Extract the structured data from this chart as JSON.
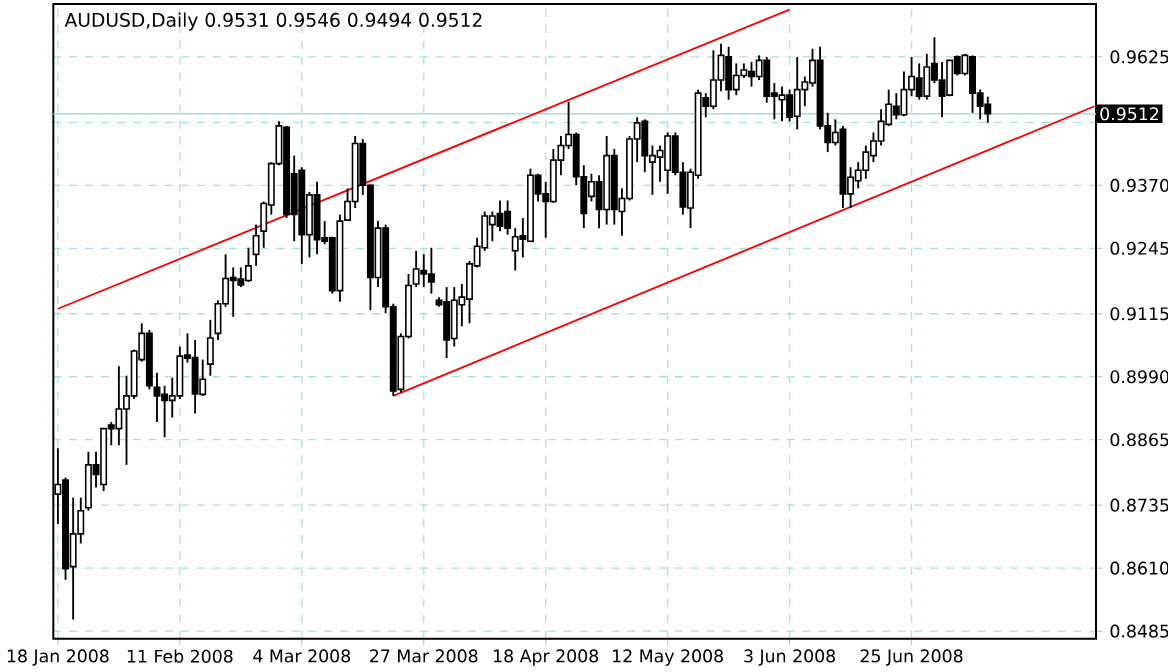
{
  "chart_data": {
    "type": "candlestick",
    "title": "AUDUSD,Daily 0.9531 0.9546 0.9494 0.9512",
    "categories": [
      "18 Jan 2008",
      null,
      null,
      null,
      null,
      null,
      null,
      null,
      null,
      null,
      null,
      null,
      null,
      null,
      null,
      null,
      "11 Feb 2008",
      null,
      null,
      null,
      null,
      null,
      null,
      null,
      null,
      null,
      null,
      null,
      null,
      null,
      null,
      null,
      "4 Mar 2008",
      null,
      null,
      null,
      null,
      null,
      null,
      null,
      null,
      null,
      null,
      null,
      null,
      null,
      null,
      null,
      "27 Mar 2008",
      null,
      null,
      null,
      null,
      null,
      null,
      null,
      null,
      null,
      null,
      null,
      null,
      null,
      null,
      null,
      "18 Apr 2008",
      null,
      null,
      null,
      null,
      null,
      null,
      null,
      null,
      null,
      null,
      null,
      null,
      null,
      null,
      null,
      "12 May 2008",
      null,
      null,
      null,
      null,
      null,
      null,
      null,
      null,
      null,
      null,
      null,
      null,
      null,
      null,
      null,
      "3 Jun 2008",
      null,
      null,
      null,
      null,
      null,
      null,
      null,
      null,
      null,
      null,
      null,
      null,
      null,
      null,
      null,
      "25 Jun 2008",
      null,
      null,
      null,
      null,
      null,
      null,
      null,
      null,
      null,
      null,
      null,
      null,
      null,
      null,
      null,
      null,
      null,
      null,
      null,
      null,
      null,
      null,
      null,
      null
    ],
    "ohlc": [
      [
        0.8757,
        0.8848,
        0.8698,
        0.8776
      ],
      [
        0.8785,
        0.879,
        0.8587,
        0.8609
      ],
      [
        0.8613,
        0.875,
        0.8508,
        0.8678
      ],
      [
        0.8678,
        0.875,
        0.8659,
        0.8724
      ],
      [
        0.873,
        0.8841,
        0.8724,
        0.8815
      ],
      [
        0.8815,
        0.8841,
        0.877,
        0.8796
      ],
      [
        0.8776,
        0.8887,
        0.8763,
        0.8887
      ],
      [
        0.8894,
        0.89,
        0.8854,
        0.8887
      ],
      [
        0.8887,
        0.9011,
        0.8854,
        0.8926
      ],
      [
        0.8926,
        0.8992,
        0.8815,
        0.8952
      ],
      [
        0.8952,
        0.9044,
        0.8946,
        0.9041
      ],
      [
        0.9024,
        0.9096,
        0.902,
        0.9076
      ],
      [
        0.9076,
        0.9083,
        0.8965,
        0.8972
      ],
      [
        0.8969,
        0.8998,
        0.89,
        0.8952
      ],
      [
        0.8955,
        0.8972,
        0.887,
        0.8943
      ],
      [
        0.8943,
        0.8988,
        0.8909,
        0.8952
      ],
      [
        0.8952,
        0.905,
        0.8946,
        0.9031
      ],
      [
        0.9033,
        0.9076,
        0.9018,
        0.9027
      ],
      [
        0.9028,
        0.9063,
        0.8917,
        0.8956
      ],
      [
        0.8955,
        0.9024,
        0.8952,
        0.8985
      ],
      [
        0.9015,
        0.9103,
        0.8992,
        0.9067
      ],
      [
        0.9076,
        0.9142,
        0.9063,
        0.9135
      ],
      [
        0.9135,
        0.9233,
        0.9129,
        0.9185
      ],
      [
        0.9187,
        0.9207,
        0.9109,
        0.9181
      ],
      [
        0.9184,
        0.9207,
        0.9168,
        0.9172
      ],
      [
        0.9181,
        0.9246,
        0.9178,
        0.921
      ],
      [
        0.9233,
        0.9292,
        0.921,
        0.927
      ],
      [
        0.9279,
        0.9338,
        0.9246,
        0.9334
      ],
      [
        0.9331,
        0.9416,
        0.9312,
        0.9413
      ],
      [
        0.9413,
        0.9497,
        0.941,
        0.9488
      ],
      [
        0.9485,
        0.9488,
        0.9305,
        0.9312
      ],
      [
        0.9393,
        0.9429,
        0.9259,
        0.9312
      ],
      [
        0.94,
        0.9406,
        0.9214,
        0.9272
      ],
      [
        0.9272,
        0.9357,
        0.9227,
        0.9351
      ],
      [
        0.9351,
        0.9377,
        0.9233,
        0.9262
      ],
      [
        0.9266,
        0.9299,
        0.9253,
        0.9259
      ],
      [
        0.9266,
        0.9268,
        0.9155,
        0.9161
      ],
      [
        0.9161,
        0.9312,
        0.9139,
        0.9299
      ],
      [
        0.9301,
        0.9364,
        0.9299,
        0.9338
      ],
      [
        0.9338,
        0.9468,
        0.9325,
        0.9453
      ],
      [
        0.9453,
        0.9462,
        0.9351,
        0.937
      ],
      [
        0.937,
        0.9372,
        0.9122,
        0.9187
      ],
      [
        0.9187,
        0.9299,
        0.9168,
        0.9285
      ],
      [
        0.9285,
        0.9292,
        0.9116,
        0.9129
      ],
      [
        0.9129,
        0.9135,
        0.8952,
        0.8962
      ],
      [
        0.8965,
        0.9076,
        0.8959,
        0.907
      ],
      [
        0.907,
        0.9194,
        0.9066,
        0.9171
      ],
      [
        0.9174,
        0.924,
        0.9168,
        0.9204
      ],
      [
        0.9201,
        0.9233,
        0.9168,
        0.9194
      ],
      [
        0.9194,
        0.9246,
        0.9155,
        0.9178
      ],
      [
        0.9142,
        0.9148,
        0.9129,
        0.9133
      ],
      [
        0.9139,
        0.9168,
        0.9027,
        0.9063
      ],
      [
        0.9066,
        0.9168,
        0.905,
        0.9142
      ],
      [
        0.9133,
        0.9174,
        0.909,
        0.9148
      ],
      [
        0.9144,
        0.922,
        0.9096,
        0.9214
      ],
      [
        0.921,
        0.9266,
        0.9207,
        0.9249
      ],
      [
        0.9246,
        0.9318,
        0.924,
        0.9309
      ],
      [
        0.9292,
        0.9318,
        0.9259,
        0.9309
      ],
      [
        0.9314,
        0.934,
        0.9279,
        0.9289
      ],
      [
        0.9318,
        0.934,
        0.9272,
        0.9285
      ],
      [
        0.924,
        0.9285,
        0.9201,
        0.9268
      ],
      [
        0.927,
        0.9305,
        0.9227,
        0.9263
      ],
      [
        0.9259,
        0.9403,
        0.9257,
        0.939
      ],
      [
        0.939,
        0.9393,
        0.9338,
        0.9353
      ],
      [
        0.9353,
        0.9377,
        0.9266,
        0.9338
      ],
      [
        0.9338,
        0.9442,
        0.9335,
        0.942
      ],
      [
        0.942,
        0.9468,
        0.939,
        0.9449
      ],
      [
        0.9449,
        0.9536,
        0.9442,
        0.9471
      ],
      [
        0.9471,
        0.9475,
        0.937,
        0.9387
      ],
      [
        0.9387,
        0.941,
        0.9285,
        0.9314
      ],
      [
        0.9348,
        0.9393,
        0.9338,
        0.9377
      ],
      [
        0.9377,
        0.939,
        0.9285,
        0.9322
      ],
      [
        0.9322,
        0.9468,
        0.9292,
        0.9429
      ],
      [
        0.9429,
        0.9442,
        0.9292,
        0.9322
      ],
      [
        0.9318,
        0.9364,
        0.927,
        0.9344
      ],
      [
        0.9344,
        0.9468,
        0.934,
        0.9462
      ],
      [
        0.9462,
        0.9505,
        0.9416,
        0.9494
      ],
      [
        0.9497,
        0.9501,
        0.9396,
        0.9429
      ],
      [
        0.9416,
        0.9449,
        0.9351,
        0.9429
      ],
      [
        0.9426,
        0.9449,
        0.9377,
        0.9439
      ],
      [
        0.94,
        0.9475,
        0.9353,
        0.9468
      ],
      [
        0.9468,
        0.9475,
        0.939,
        0.9396
      ],
      [
        0.9396,
        0.9416,
        0.9312,
        0.9327
      ],
      [
        0.9325,
        0.9403,
        0.9285,
        0.9396
      ],
      [
        0.939,
        0.956,
        0.9383,
        0.9553
      ],
      [
        0.9544,
        0.9553,
        0.9505,
        0.9527
      ],
      [
        0.9527,
        0.9638,
        0.9521,
        0.9579
      ],
      [
        0.9579,
        0.9651,
        0.9557,
        0.9628
      ],
      [
        0.9625,
        0.9645,
        0.954,
        0.956
      ],
      [
        0.956,
        0.9612,
        0.9549,
        0.9588
      ],
      [
        0.9588,
        0.9612,
        0.9583,
        0.9599
      ],
      [
        0.9596,
        0.9615,
        0.9566,
        0.9586
      ],
      [
        0.9586,
        0.9628,
        0.9579,
        0.9618
      ],
      [
        0.9618,
        0.9625,
        0.9534,
        0.9547
      ],
      [
        0.9553,
        0.9573,
        0.9501,
        0.9547
      ],
      [
        0.954,
        0.9566,
        0.9497,
        0.9549
      ],
      [
        0.9549,
        0.956,
        0.9497,
        0.9505
      ],
      [
        0.9507,
        0.9625,
        0.9481,
        0.956
      ],
      [
        0.956,
        0.9586,
        0.9527,
        0.9575
      ],
      [
        0.9573,
        0.9641,
        0.9566,
        0.9618
      ],
      [
        0.9618,
        0.9645,
        0.9481,
        0.9488
      ],
      [
        0.9488,
        0.9514,
        0.9436,
        0.9455
      ],
      [
        0.9455,
        0.9501,
        0.9449,
        0.9475
      ],
      [
        0.9481,
        0.9488,
        0.9325,
        0.9353
      ],
      [
        0.9353,
        0.9406,
        0.9325,
        0.9386
      ],
      [
        0.9379,
        0.9416,
        0.9364,
        0.94
      ],
      [
        0.94,
        0.9449,
        0.9383,
        0.9436
      ],
      [
        0.9429,
        0.9475,
        0.9416,
        0.9458
      ],
      [
        0.9458,
        0.9521,
        0.9449,
        0.9497
      ],
      [
        0.9491,
        0.956,
        0.9488,
        0.9531
      ],
      [
        0.9527,
        0.9553,
        0.9501,
        0.951
      ],
      [
        0.951,
        0.9596,
        0.9507,
        0.956
      ],
      [
        0.956,
        0.9625,
        0.9547,
        0.9586
      ],
      [
        0.9583,
        0.9612,
        0.954,
        0.9547
      ],
      [
        0.9547,
        0.9631,
        0.954,
        0.9605
      ],
      [
        0.9612,
        0.9664,
        0.9573,
        0.9579
      ],
      [
        0.9579,
        0.9615,
        0.9505,
        0.9547
      ],
      [
        0.9549,
        0.9618,
        0.9547,
        0.9618
      ],
      [
        0.9625,
        0.9628,
        0.9588,
        0.9592
      ],
      [
        0.9592,
        0.9631,
        0.9588,
        0.9628
      ],
      [
        0.9625,
        0.9628,
        0.9514,
        0.9553
      ],
      [
        0.9553,
        0.956,
        0.9501,
        0.9527
      ],
      [
        0.9531,
        0.9546,
        0.9494,
        0.9512
      ],
      null,
      null,
      null,
      null,
      null,
      null,
      null,
      null,
      null,
      null,
      null,
      null,
      null,
      null
    ],
    "series": [
      {
        "type": "line",
        "color": "#ff0000",
        "values": [
          0.9125,
          null,
          null,
          null,
          null,
          null,
          null,
          null,
          null,
          null,
          null,
          null,
          null,
          null,
          null,
          null,
          null,
          null,
          null,
          null,
          null,
          null,
          null,
          null,
          null,
          null,
          null,
          null,
          null,
          null,
          null,
          null,
          null,
          null,
          null,
          null,
          null,
          null,
          null,
          null,
          null,
          null,
          null,
          null,
          null,
          null,
          null,
          null,
          null,
          null,
          null,
          null,
          null,
          null,
          null,
          null,
          null,
          null,
          null,
          null,
          null,
          null,
          null,
          null,
          null,
          null,
          null,
          null,
          null,
          null,
          null,
          null,
          null,
          null,
          null,
          null,
          null,
          null,
          null,
          null,
          null,
          null,
          null,
          null,
          null,
          null,
          null,
          null,
          null,
          null,
          null,
          null,
          null,
          null,
          null,
          null,
          0.9719,
          null,
          null,
          null,
          null,
          null,
          null,
          null,
          null,
          null,
          null,
          null,
          null,
          null,
          null,
          null,
          null,
          null,
          null,
          null,
          null,
          null,
          null,
          null,
          null,
          null,
          null,
          null,
          null,
          null,
          null,
          null,
          null,
          null,
          null,
          null,
          null,
          null,
          null,
          null,
          null
        ]
      },
      {
        "type": "line",
        "color": "#ff0000",
        "values": [
          null,
          null,
          null,
          null,
          null,
          null,
          null,
          null,
          null,
          null,
          null,
          null,
          null,
          null,
          null,
          null,
          null,
          null,
          null,
          null,
          null,
          null,
          null,
          null,
          null,
          null,
          null,
          null,
          null,
          null,
          null,
          null,
          null,
          null,
          null,
          null,
          null,
          null,
          null,
          null,
          null,
          null,
          null,
          null,
          0.8952,
          null,
          null,
          null,
          null,
          null,
          null,
          null,
          null,
          null,
          null,
          null,
          null,
          null,
          null,
          null,
          null,
          null,
          null,
          null,
          null,
          null,
          null,
          null,
          null,
          null,
          null,
          null,
          null,
          null,
          null,
          null,
          null,
          null,
          null,
          null,
          null,
          null,
          null,
          null,
          null,
          null,
          null,
          null,
          null,
          null,
          null,
          null,
          null,
          null,
          null,
          null,
          null,
          null,
          null,
          null,
          null,
          null,
          null,
          null,
          null,
          null,
          null,
          null,
          null,
          null,
          null,
          null,
          null,
          null,
          null,
          null,
          null,
          null,
          null,
          null,
          null,
          null,
          null,
          null,
          null,
          null,
          null,
          null,
          null,
          null,
          null,
          null,
          null,
          null,
          null,
          null,
          0.9527
        ]
      }
    ],
    "ylim": [
      0.847,
      0.973
    ],
    "yticks": [
      0.8485,
      {
        "value": 0.861,
        "label": "0.8610"
      },
      0.8735,
      0.8865,
      {
        "value": 0.899,
        "label": "0.8990"
      },
      0.9115,
      0.9245,
      {
        "value": 0.937,
        "label": "0.9370"
      },
      {
        "value": 0.9495,
        "label": null
      },
      0.9625
    ],
    "grid": true,
    "ref_lines": [
      {
        "axis": "y",
        "value": 0.9512,
        "label": "0.9512",
        "color": "#a8dede"
      }
    ]
  }
}
